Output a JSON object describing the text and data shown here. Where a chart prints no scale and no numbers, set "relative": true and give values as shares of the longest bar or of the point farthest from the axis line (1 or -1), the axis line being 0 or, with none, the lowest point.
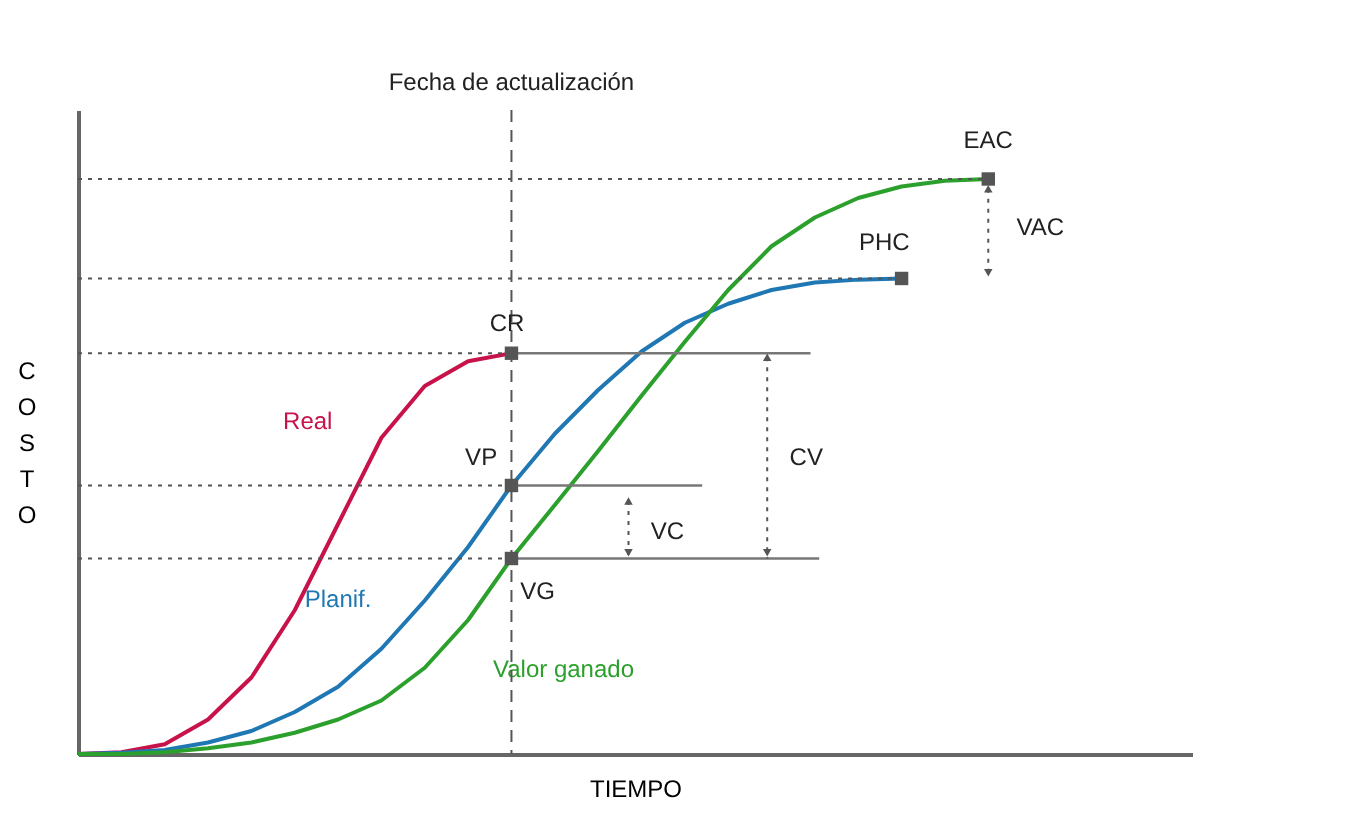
{
  "chart_data": {
    "type": "line",
    "relative": true,
    "xlabel": "TIEMPO",
    "ylabel": "COSTO",
    "categories": [
      null,
      null,
      null,
      null,
      null,
      null,
      null,
      null,
      null,
      null,
      null,
      null,
      null,
      null,
      null,
      null,
      null,
      null,
      null,
      null,
      null,
      null,
      null,
      null,
      null,
      null
    ],
    "legend": false,
    "series": [
      {
        "name": "Real",
        "color": "#c8134a",
        "values": [
          0,
          0.003,
          0.017,
          0.06,
          0.133,
          0.25,
          0.4,
          0.55,
          0.64,
          0.683,
          0.697,
          null,
          null,
          null,
          null,
          null,
          null,
          null,
          null,
          null,
          null,
          null,
          null,
          null,
          null,
          null
        ]
      },
      {
        "name": "Planif.",
        "color": "#1f77b4",
        "values": [
          0,
          0.002,
          0.007,
          0.02,
          0.04,
          0.073,
          0.117,
          0.183,
          0.267,
          0.36,
          0.467,
          0.557,
          0.633,
          0.7,
          0.75,
          0.783,
          0.807,
          0.82,
          0.825,
          0.827,
          null,
          null,
          null,
          null,
          null,
          null
        ]
      },
      {
        "name": "Valor ganado",
        "color": "#2ca02c",
        "values": [
          0,
          0,
          0.003,
          0.01,
          0.02,
          0.037,
          0.06,
          0.093,
          0.15,
          0.233,
          0.34,
          0.433,
          0.527,
          0.623,
          0.717,
          0.807,
          0.883,
          0.933,
          0.967,
          0.987,
          0.997,
          1,
          null,
          null,
          null,
          null
        ]
      }
    ],
    "annotations": [
      "Fecha de actualización",
      "EAC",
      "PHC",
      "CR",
      "VP",
      "VG",
      "VAC",
      "CV",
      "VC"
    ]
  }
}
